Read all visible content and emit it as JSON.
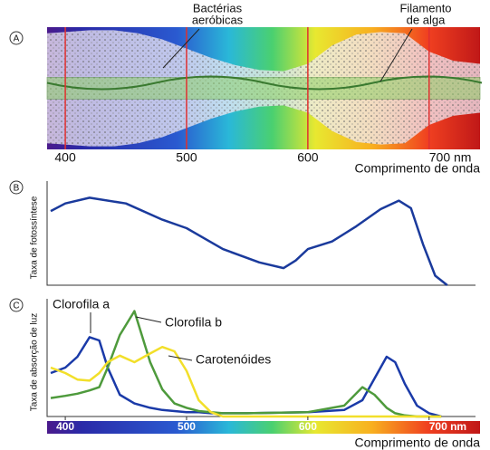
{
  "chart_data": [
    {
      "type": "spectrum",
      "panel_label": "A",
      "annotations": [
        [
          "Bactérias",
          "aeróbicas"
        ],
        [
          "Filamento",
          "de alga"
        ]
      ],
      "xlim": [
        385,
        742
      ],
      "xticks": [
        400,
        500,
        600,
        {
          "value": 700,
          "label": "700 nm"
        }
      ],
      "xlabel": "Comprimento de onda",
      "x": [
        385,
        400,
        420,
        440,
        460,
        480,
        500,
        520,
        540,
        560,
        580,
        600,
        620,
        640,
        660,
        680,
        700,
        720,
        742
      ],
      "values": [
        0.9,
        0.92,
        0.95,
        0.95,
        0.9,
        0.8,
        0.65,
        0.5,
        0.38,
        0.3,
        0.28,
        0.4,
        0.7,
        0.88,
        0.92,
        0.9,
        0.6,
        0.45,
        0.4
      ],
      "ylim": [
        0,
        1
      ],
      "filament_color": "#8fd06a"
    },
    {
      "type": "line",
      "panel_label": "B",
      "ylabel": "Taxa de fotossíntese",
      "xlim": [
        385,
        742
      ],
      "ylim": [
        0,
        1
      ],
      "x": [
        388,
        400,
        420,
        450,
        480,
        500,
        530,
        560,
        580,
        590,
        600,
        620,
        640,
        660,
        675,
        685,
        695,
        705,
        715
      ],
      "series": [
        {
          "color": "#1a3a9c",
          "values": [
            0.78,
            0.86,
            0.92,
            0.86,
            0.69,
            0.6,
            0.38,
            0.24,
            0.18,
            0.26,
            0.38,
            0.46,
            0.62,
            0.8,
            0.89,
            0.81,
            0.43,
            0.1,
            0
          ]
        }
      ]
    },
    {
      "type": "line",
      "panel_label": "C",
      "ylabel": "Taxa de absorção de luz",
      "xlim": [
        385,
        742
      ],
      "ylim": [
        0,
        1
      ],
      "xticks": [
        400,
        500,
        600,
        {
          "value": 700,
          "label": "700 nm"
        }
      ],
      "xlabel": "Comprimento de onda",
      "annotations": [
        "Clorofila a",
        "Clorofila b",
        "Carotenóides"
      ],
      "x": [
        388,
        400,
        410,
        420,
        428,
        435,
        445,
        457,
        470,
        480,
        490,
        500,
        510,
        520,
        530,
        550,
        600,
        630,
        645,
        655,
        665,
        672,
        680,
        690,
        700,
        710
      ],
      "series": [
        {
          "color": "#1a3aa8",
          "values": [
            0.4,
            0.45,
            0.55,
            0.73,
            0.7,
            0.45,
            0.2,
            0.12,
            0.08,
            0.06,
            0.05,
            0.04,
            0.04,
            0.03,
            0.03,
            0.03,
            0.04,
            0.06,
            0.15,
            0.35,
            0.55,
            0.5,
            0.3,
            0.1,
            0.03,
            0
          ]
        },
        {
          "color": "#4e9a3c",
          "values": [
            0.17,
            0.19,
            0.21,
            0.24,
            0.27,
            0.45,
            0.75,
            0.97,
            0.5,
            0.25,
            0.12,
            0.08,
            0.05,
            0.04,
            0.03,
            0.03,
            0.04,
            0.1,
            0.27,
            0.2,
            0.08,
            0.03,
            0.01,
            0,
            0,
            0
          ]
        },
        {
          "color": "#f2df2a",
          "values": [
            0.45,
            0.4,
            0.34,
            0.33,
            0.4,
            0.5,
            0.56,
            0.5,
            0.58,
            0.64,
            0.6,
            0.42,
            0.15,
            0.04,
            0,
            0,
            0,
            0,
            0,
            0,
            0,
            0,
            0,
            0,
            0,
            0
          ]
        }
      ]
    }
  ]
}
